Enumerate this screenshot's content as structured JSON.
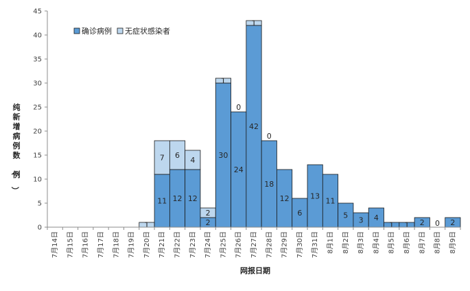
{
  "chart_data": {
    "type": "bar",
    "stacked": true,
    "categories": [
      "7月14日",
      "7月15日",
      "7月16日",
      "7月17日",
      "7月18日",
      "7月19日",
      "7月20日",
      "7月21日",
      "7月22日",
      "7月23日",
      "7月24日",
      "7月25日",
      "7月26日",
      "7月27日",
      "7月28日",
      "7月29日",
      "7月30日",
      "7月31日",
      "8月1日",
      "8月2日",
      "8月3日",
      "8月4日",
      "8月5日",
      "8月6日",
      "8月7日",
      "8月8日",
      "8月9日"
    ],
    "series": [
      {
        "name": "确诊病例",
        "color": "#5b9bd5",
        "values": [
          0,
          0,
          0,
          0,
          0,
          0,
          0,
          11,
          12,
          12,
          2,
          30,
          24,
          42,
          18,
          12,
          6,
          13,
          11,
          5,
          3,
          4,
          1,
          1,
          2,
          0,
          2
        ]
      },
      {
        "name": "无症状感染者",
        "color": "#bdd7ee",
        "values": [
          0,
          0,
          0,
          0,
          0,
          0,
          1,
          7,
          6,
          4,
          2,
          1,
          0,
          1,
          0,
          0,
          0,
          0,
          0,
          0,
          0,
          0,
          0,
          0,
          0,
          0,
          0
        ]
      }
    ],
    "bar_labels": {
      "confirmed": [
        "",
        "",
        "",
        "",
        "",
        "",
        "",
        "11",
        "12",
        "12",
        "2",
        "30",
        "24",
        "42",
        "18",
        "12",
        "6",
        "13",
        "11",
        "5",
        "3",
        "4",
        "1",
        "1",
        "2",
        "0",
        "2"
      ],
      "asymptomatic": [
        "",
        "",
        "",
        "",
        "",
        "",
        "1",
        "7",
        "6",
        "4",
        "2",
        "1",
        "0",
        "1",
        "0",
        "",
        "",
        "",
        "",
        "",
        "",
        "",
        "",
        "",
        "",
        "",
        ""
      ]
    },
    "title": "",
    "xlabel": "网报日期",
    "ylabel": "纯新增病例数（例）",
    "ylim": [
      0,
      45
    ],
    "yticks": [
      0,
      5,
      10,
      15,
      20,
      25,
      30,
      35,
      40,
      45
    ],
    "grid": false,
    "legend_position": "top-left",
    "bar_edge_color": "#1a1a1a"
  }
}
